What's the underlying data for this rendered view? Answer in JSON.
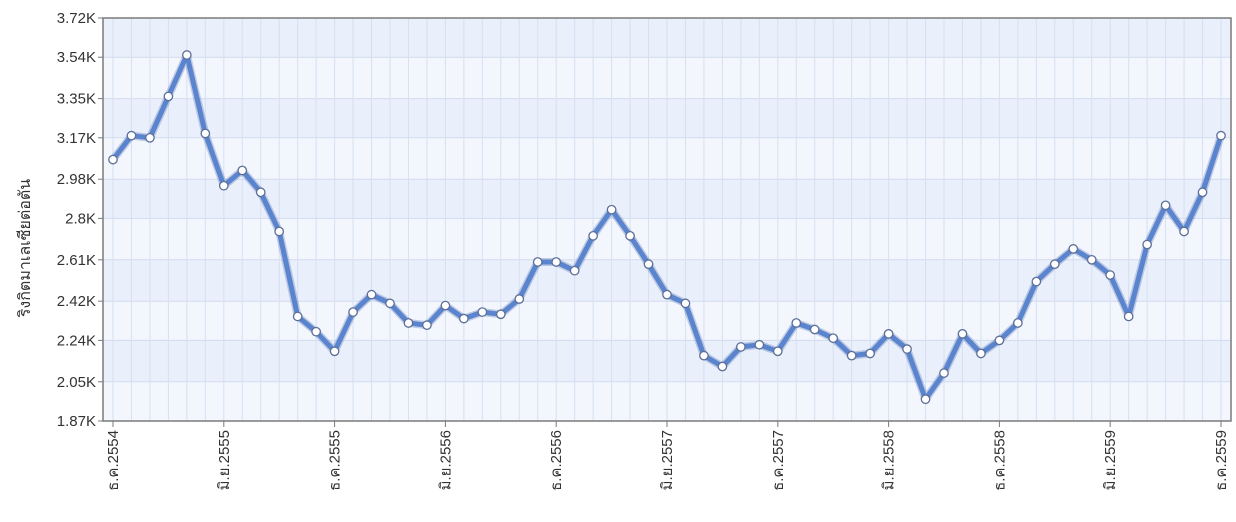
{
  "chart_data": {
    "type": "line",
    "ylabel": "ริงกิตมาเลเซียต่อตัน",
    "ylim": [
      1870,
      3720
    ],
    "y_tick_values": [
      1870,
      2050,
      2240,
      2420,
      2610,
      2800,
      2980,
      3170,
      3350,
      3540,
      3720
    ],
    "y_tick_labels": [
      "1.87K",
      "2.05K",
      "2.24K",
      "2.42K",
      "2.61K",
      "2.8K",
      "2.98K",
      "3.17K",
      "3.35K",
      "3.54K",
      "3.72K"
    ],
    "x_labels": [
      "ธ.ค.2554",
      "มิ.ย.2555",
      "ธ.ค.2555",
      "มิ.ย.2556",
      "ธ.ค.2556",
      "มิ.ย.2557",
      "ธ.ค.2557",
      "มิ.ย.2558",
      "ธ.ค.2558",
      "มิ.ย.2559",
      "ธ.ค.2559"
    ],
    "x_label_month_index": [
      0,
      6,
      12,
      18,
      24,
      30,
      36,
      42,
      48,
      54,
      60
    ],
    "grid": true,
    "legend": "none",
    "series": [
      {
        "values": [
          3070,
          3180,
          3170,
          3360,
          3550,
          3190,
          2950,
          3020,
          2920,
          2740,
          2350,
          2280,
          2190,
          2370,
          2450,
          2410,
          2320,
          2310,
          2400,
          2340,
          2370,
          2360,
          2430,
          2600,
          2600,
          2560,
          2720,
          2840,
          2720,
          2590,
          2450,
          2410,
          2170,
          2120,
          2210,
          2220,
          2190,
          2320,
          2290,
          2250,
          2170,
          2180,
          2270,
          2200,
          1970,
          2090,
          2270,
          2180,
          2240,
          2320,
          2510,
          2590,
          2660,
          2610,
          2540,
          2350,
          2680,
          2860,
          2740,
          2920,
          3180
        ],
        "color": "#5b84cf"
      }
    ]
  }
}
